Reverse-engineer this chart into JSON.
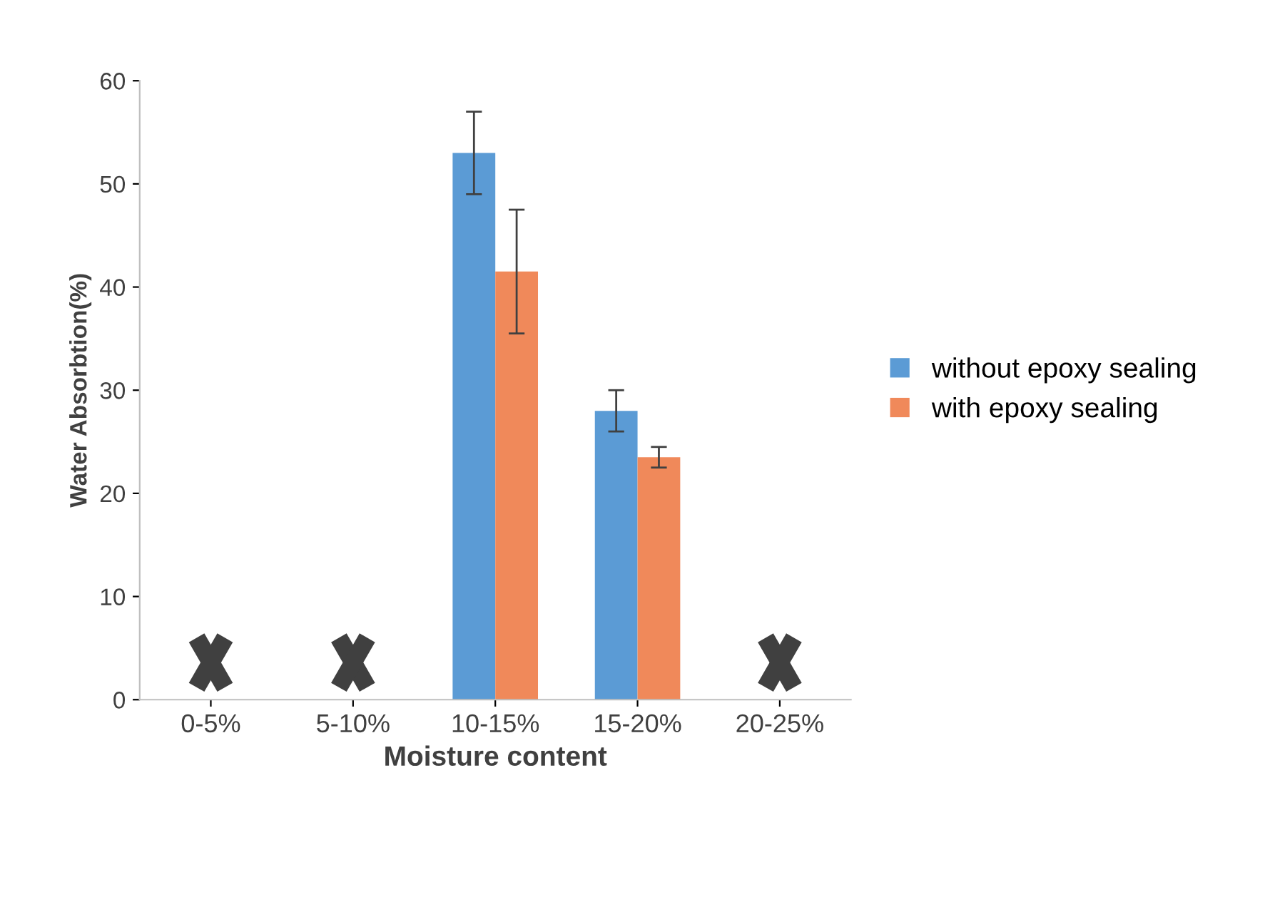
{
  "chart_data": {
    "type": "bar",
    "xlabel": "Moisture content",
    "ylabel": "Water Absorbtion(%)",
    "categories": [
      "0-5%",
      "5-10%",
      "10-15%",
      "15-20%",
      "20-25%"
    ],
    "series": [
      {
        "name": "without epoxy sealing",
        "color": "#5b9bd5",
        "values": [
          null,
          null,
          53,
          28,
          null
        ],
        "errors": [
          null,
          null,
          4,
          2,
          null
        ]
      },
      {
        "name": "with epoxy sealing",
        "color": "#f0895a",
        "values": [
          null,
          null,
          41.5,
          23.5,
          null
        ],
        "errors": [
          null,
          null,
          6,
          1,
          null
        ]
      }
    ],
    "ylim": [
      0,
      60
    ],
    "yticks": [
      0,
      10,
      20,
      30,
      40,
      50,
      60
    ],
    "grid": false,
    "legend": "right"
  }
}
